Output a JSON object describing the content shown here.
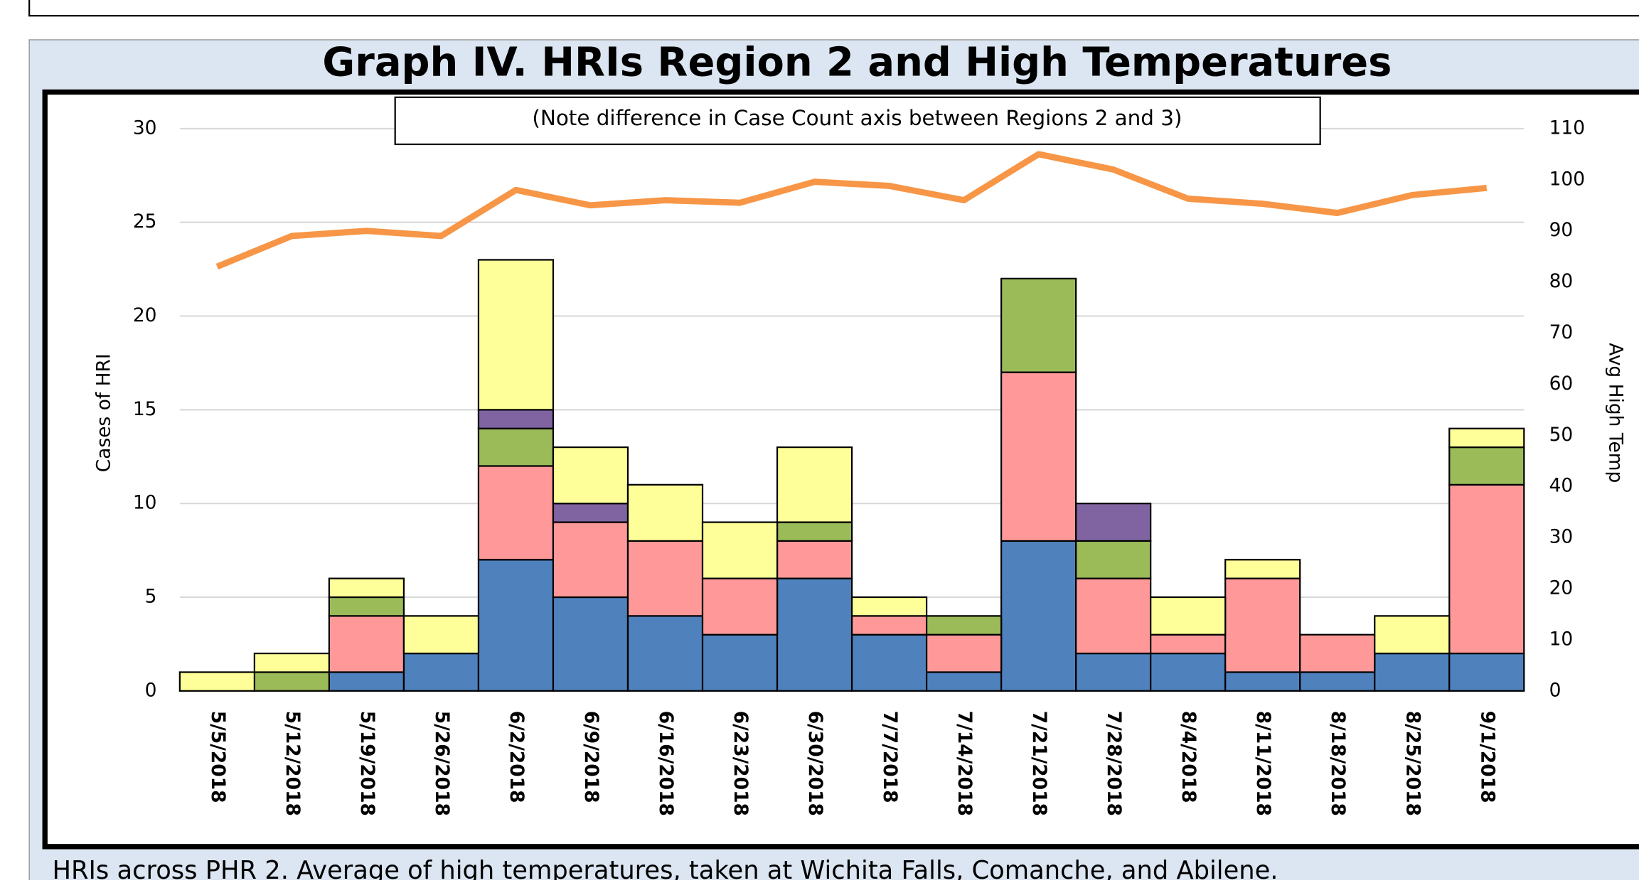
{
  "chart_data": {
    "type": "stacked-bar-line",
    "title": "Graph IV.  HRIs Region 2 and High Temperatures",
    "annotation": "(Note difference in Case Count axis between Regions 2 and 3)",
    "footer": "HRIs across PHR 2.  Average of high temperatures, taken at Wichita Falls, Comanche, and Abilene.",
    "y_label": "Cases of HRI",
    "y2_label": "Avg High Temp",
    "categories": [
      "5/5/2018",
      "5/12/2018",
      "5/19/2018",
      "5/26/2018",
      "6/2/2018",
      "6/9/2018",
      "6/16/2018",
      "6/23/2018",
      "6/30/2018",
      "7/7/2018",
      "7/14/2018",
      "7/21/2018",
      "7/28/2018",
      "8/4/2018",
      "8/11/2018",
      "8/18/2018",
      "8/25/2018",
      "9/1/2018"
    ],
    "series": [
      {
        "type": "bar",
        "color": "#4f81bd",
        "values": [
          0,
          0,
          1,
          2,
          7,
          5,
          4,
          3,
          6,
          3,
          1,
          8,
          2,
          2,
          1,
          1,
          2,
          2
        ]
      },
      {
        "type": "bar",
        "color": "#ff9999",
        "values": [
          0,
          0,
          3,
          0,
          5,
          4,
          4,
          3,
          2,
          1,
          2,
          9,
          4,
          1,
          5,
          2,
          0,
          9
        ]
      },
      {
        "type": "bar",
        "color": "#9bbb59",
        "values": [
          0,
          1,
          1,
          0,
          2,
          0,
          0,
          0,
          1,
          0,
          1,
          5,
          2,
          0,
          0,
          0,
          0,
          2
        ]
      },
      {
        "type": "bar",
        "color": "#8064a2",
        "values": [
          0,
          0,
          0,
          0,
          1,
          1,
          0,
          0,
          0,
          0,
          0,
          0,
          2,
          0,
          0,
          0,
          0,
          0
        ]
      },
      {
        "type": "bar",
        "color": "#ffff99",
        "values": [
          1,
          1,
          1,
          2,
          8,
          3,
          3,
          3,
          4,
          1,
          0,
          0,
          0,
          2,
          1,
          0,
          2,
          1
        ]
      },
      {
        "type": "line",
        "axis": "y2",
        "color": "#f79646",
        "values": [
          83,
          89,
          90,
          89,
          98,
          95,
          96,
          95.5,
          99.6,
          98.8,
          96,
          105,
          102,
          96.3,
          95.3,
          93.5,
          97,
          98.4
        ]
      }
    ],
    "ylim": [
      0,
      30
    ],
    "yticks": [
      0,
      5,
      10,
      15,
      20,
      25,
      30
    ],
    "y2lim": [
      0,
      110
    ],
    "y2ticks": [
      0,
      10,
      20,
      30,
      40,
      50,
      60,
      70,
      80,
      90,
      100,
      110
    ],
    "grid": true
  }
}
